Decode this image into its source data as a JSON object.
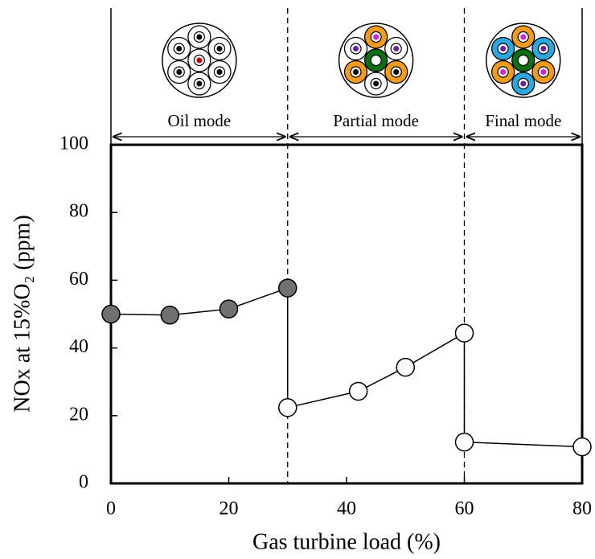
{
  "chart_data": {
    "type": "line",
    "xlabel": "Gas turbine load (%)",
    "ylabel": "NOx at 15%O₂ (ppm)",
    "xlim": [
      0,
      80
    ],
    "xticks": [
      0,
      20,
      40,
      60,
      80
    ],
    "ylim": [
      0,
      100
    ],
    "yticks": [
      0,
      20,
      40,
      60,
      80,
      100
    ],
    "mode_boundaries": [
      30,
      60
    ],
    "series": [
      {
        "name": "Oil mode",
        "color": "#707070",
        "x": [
          0,
          10,
          20,
          30
        ],
        "values": [
          50,
          49.7,
          51.5,
          57.7
        ]
      },
      {
        "name": "Partial mode",
        "color": "#ffffff",
        "x": [
          30,
          42,
          50,
          60
        ],
        "values": [
          22.4,
          27.2,
          34.3,
          44.4
        ]
      },
      {
        "name": "Final mode",
        "color": "#ffffff",
        "x": [
          60,
          80
        ],
        "values": [
          12.2,
          10.8
        ]
      }
    ]
  }
}
